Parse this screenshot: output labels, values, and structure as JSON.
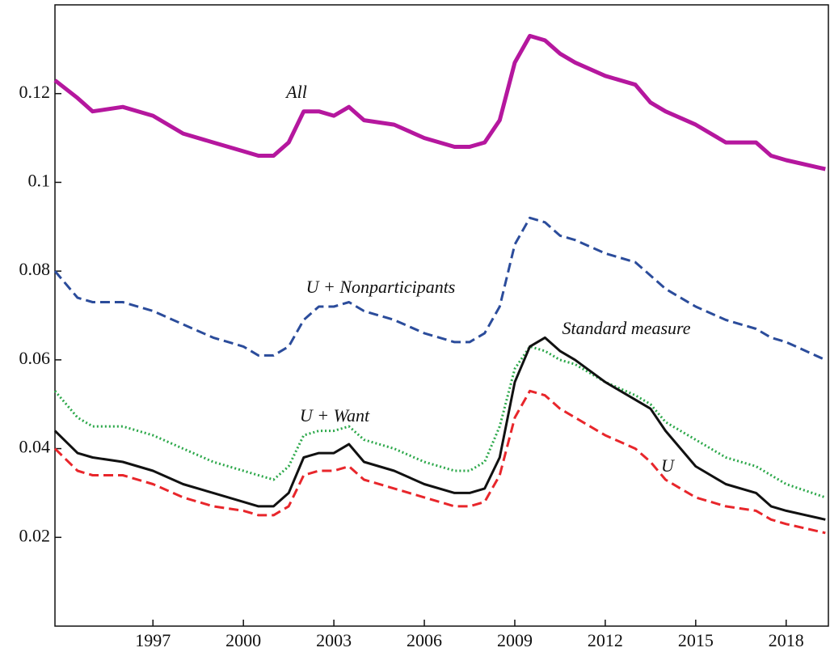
{
  "chart_data": {
    "type": "line",
    "x": [
      1993.75,
      1994.5,
      1995,
      1996,
      1997,
      1998,
      1999,
      2000,
      2000.5,
      2001,
      2001.5,
      2002,
      2002.5,
      2003,
      2003.5,
      2004,
      2005,
      2006,
      2007,
      2007.5,
      2008,
      2008.5,
      2009,
      2009.5,
      2010,
      2010.5,
      2011,
      2012,
      2013,
      2013.5,
      2014,
      2015,
      2016,
      2017,
      2017.5,
      2018,
      2019.3
    ],
    "series": [
      {
        "name": "All",
        "color": "#b5179e",
        "linestyle": "solid",
        "values": [
          0.123,
          0.119,
          0.116,
          0.117,
          0.115,
          0.111,
          0.109,
          0.107,
          0.106,
          0.106,
          0.109,
          0.116,
          0.116,
          0.115,
          0.117,
          0.114,
          0.113,
          0.11,
          0.108,
          0.108,
          0.109,
          0.114,
          0.127,
          0.133,
          0.132,
          0.129,
          0.127,
          0.124,
          0.122,
          0.118,
          0.116,
          0.113,
          0.109,
          0.109,
          0.106,
          0.105,
          0.103
        ]
      },
      {
        "name": "U + Nonparticipants",
        "color": "#2b4c9b",
        "linestyle": "dashed",
        "values": [
          0.08,
          0.074,
          0.073,
          0.073,
          0.071,
          0.068,
          0.065,
          0.063,
          0.061,
          0.061,
          0.063,
          0.069,
          0.072,
          0.072,
          0.073,
          0.071,
          0.069,
          0.066,
          0.064,
          0.064,
          0.066,
          0.072,
          0.086,
          0.092,
          0.091,
          0.088,
          0.087,
          0.084,
          0.082,
          0.079,
          0.076,
          0.072,
          0.069,
          0.067,
          0.065,
          0.064,
          0.06
        ]
      },
      {
        "name": "U + Want",
        "color": "#2ca84a",
        "linestyle": "dotted",
        "values": [
          0.053,
          0.047,
          0.045,
          0.045,
          0.043,
          0.04,
          0.037,
          0.035,
          0.034,
          0.033,
          0.036,
          0.043,
          0.044,
          0.044,
          0.045,
          0.042,
          0.04,
          0.037,
          0.035,
          0.035,
          0.037,
          0.045,
          0.058,
          0.063,
          0.062,
          0.06,
          0.059,
          0.055,
          0.052,
          0.05,
          0.046,
          0.042,
          0.038,
          0.036,
          0.034,
          0.032,
          0.029
        ]
      },
      {
        "name": "Standard measure",
        "color": "#111111",
        "linestyle": "solid",
        "values": [
          0.044,
          0.039,
          0.038,
          0.037,
          0.035,
          0.032,
          0.03,
          0.028,
          0.027,
          0.027,
          0.03,
          0.038,
          0.039,
          0.039,
          0.041,
          0.037,
          0.035,
          0.032,
          0.03,
          0.03,
          0.031,
          0.038,
          0.055,
          0.063,
          0.065,
          0.062,
          0.06,
          0.055,
          0.051,
          0.049,
          0.044,
          0.036,
          0.032,
          0.03,
          0.027,
          0.026,
          0.024
        ]
      },
      {
        "name": "U",
        "color": "#e8262b",
        "linestyle": "dashed",
        "values": [
          0.04,
          0.035,
          0.034,
          0.034,
          0.032,
          0.029,
          0.027,
          0.026,
          0.025,
          0.025,
          0.027,
          0.034,
          0.035,
          0.035,
          0.036,
          0.033,
          0.031,
          0.029,
          0.027,
          0.027,
          0.028,
          0.034,
          0.047,
          0.053,
          0.052,
          0.049,
          0.047,
          0.043,
          0.04,
          0.037,
          0.033,
          0.029,
          0.027,
          0.026,
          0.024,
          0.023,
          0.021
        ]
      }
    ],
    "xlim": [
      1993.75,
      2019.4
    ],
    "xticks": [
      1997,
      2000,
      2003,
      2006,
      2009,
      2012,
      2015,
      2018
    ],
    "ylim": [
      0,
      0.14
    ],
    "yticks": [
      0.02,
      0.04,
      0.06,
      0.08,
      0.1,
      0.12
    ]
  }
}
